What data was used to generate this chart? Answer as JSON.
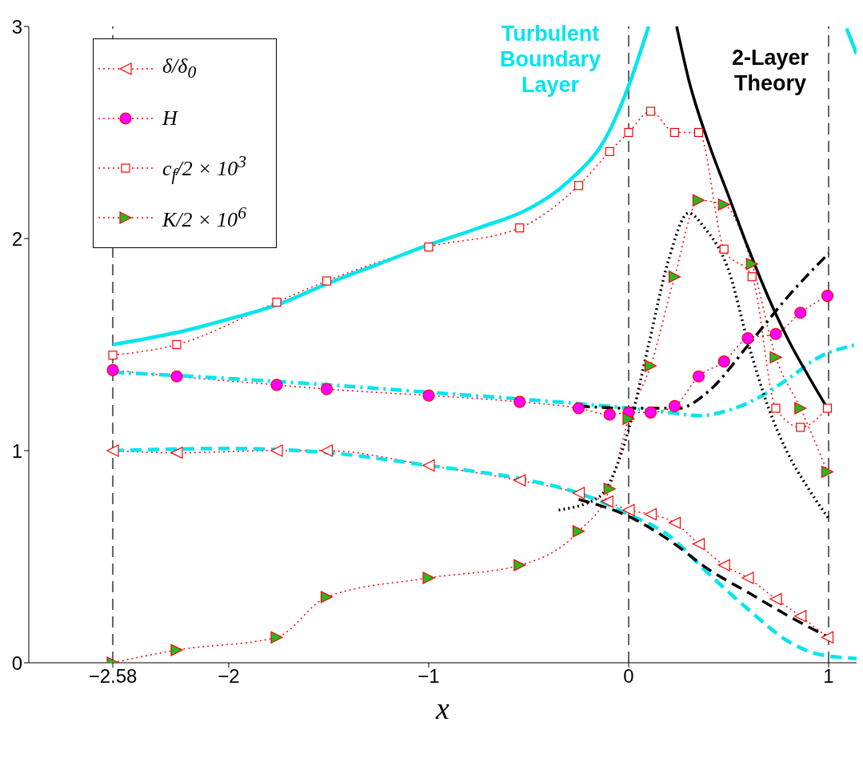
{
  "chart_data": {
    "type": "line",
    "xlabel": "x",
    "xlim": [
      -3,
      1.14
    ],
    "ylim": [
      0,
      3
    ],
    "xticks": [
      {
        "value": -2.58,
        "label": "−2.58"
      },
      {
        "value": -2,
        "label": "−2"
      },
      {
        "value": -1,
        "label": "−1"
      },
      0,
      1
    ],
    "yticks": [
      0,
      1,
      2,
      3
    ],
    "legend": "top left",
    "ref_lines": [
      {
        "axis": "x",
        "value": -2.58,
        "color": "#000000",
        "line_style": "dashed"
      },
      {
        "axis": "x",
        "value": 0,
        "color": "#000000",
        "line_style": "dashed"
      },
      {
        "axis": "x",
        "value": 1,
        "color": "#000000",
        "line_style": "dashed"
      }
    ],
    "annotations": [
      "Turbulent Boundary Layer",
      "2-Layer Theory"
    ],
    "series": [
      {
        "name": "δ/δ$_{0}$",
        "color": "#ff0000",
        "marker": "triangle",
        "line_style": "dotted",
        "x": [
          -2.58,
          -2.26,
          -1.76,
          -1.51,
          -1.0,
          -0.545,
          -0.25,
          -0.107,
          0,
          0.11,
          0.23,
          0.35,
          0.477,
          0.596,
          0.736,
          0.859,
          0.994
        ],
        "values": [
          1.0,
          0.99,
          1.0,
          1.0,
          0.93,
          0.86,
          0.8,
          0.76,
          0.72,
          0.7,
          0.66,
          0.56,
          0.46,
          0.4,
          0.3,
          0.22,
          0.12
        ]
      },
      {
        "name": "H",
        "color": "#ff0000",
        "colors": [
          "#ff00ff",
          "#ff00ff",
          "#ff00ff",
          "#ff00ff",
          "#ff00ff",
          "#ff00ff",
          "#ff00ff",
          "#ff00ff",
          "#ff00ff",
          "#ff00ff",
          "#ff00ff",
          "#ff00ff",
          "#ff00ff",
          "#ff00ff",
          "#ff00ff",
          "#ff00ff",
          "#ff00ff"
        ],
        "marker": "circle",
        "line_style": "dotted",
        "x": [
          -2.58,
          -2.26,
          -1.76,
          -1.51,
          -1.0,
          -0.545,
          -0.25,
          -0.095,
          0,
          0.11,
          0.23,
          0.35,
          0.477,
          0.596,
          0.736,
          0.859,
          0.994
        ],
        "values": [
          1.38,
          1.35,
          1.31,
          1.29,
          1.26,
          1.23,
          1.2,
          1.17,
          1.18,
          1.18,
          1.21,
          1.35,
          1.42,
          1.53,
          1.55,
          1.65,
          1.73
        ]
      },
      {
        "name": "c$_{f}$/2 × 10$^{3}$",
        "color": "#ff0000",
        "marker": "square",
        "line_style": "dotted",
        "x": [
          -2.58,
          -2.26,
          -1.76,
          -1.51,
          -1.0,
          -0.545,
          -0.25,
          -0.095,
          0,
          0.11,
          0.23,
          0.35,
          0.477,
          0.617,
          0.736,
          0.859,
          0.994
        ],
        "values": [
          1.45,
          1.5,
          1.7,
          1.8,
          1.96,
          2.05,
          2.25,
          2.41,
          2.5,
          2.6,
          2.5,
          2.5,
          1.95,
          1.82,
          1.2,
          1.11,
          1.2
        ]
      },
      {
        "name": "K/2 × 10$^{6}$",
        "color": "#ff0000",
        "colors": [
          "#22bb22",
          "#22bb22",
          "#22bb22",
          "#22bb22",
          "#22bb22",
          "#22bb22",
          "#22bb22",
          "#22bb22",
          "#22bb22",
          "#22bb22",
          "#22bb22",
          "#22bb22",
          "#22bb22",
          "#22bb22",
          "#22bb22",
          "#22bb22",
          "#22bb22"
        ],
        "marker": "triangle",
        "line_style": "dotted",
        "x": [
          -2.58,
          -2.26,
          -1.76,
          -1.51,
          -1.0,
          -0.545,
          -0.25,
          -0.095,
          0,
          0.11,
          0.23,
          0.35,
          0.477,
          0.617,
          0.736,
          0.859,
          0.994
        ],
        "values": [
          0,
          0.06,
          0.12,
          0.31,
          0.4,
          0.46,
          0.62,
          0.82,
          1.15,
          1.4,
          1.82,
          2.18,
          2.16,
          1.88,
          1.44,
          1.2,
          0.9
        ]
      },
      {
        "color": "#00e5ee",
        "marker": "none",
        "line_style": "solid",
        "x": [
          -2.58,
          -2.2,
          -2,
          -1.75,
          -1.5,
          -1.25,
          -1,
          -0.75,
          -0.5,
          -0.3,
          -0.1,
          0,
          0.1,
          0.6,
          1.09,
          1.14
        ],
        "values": [
          1.5,
          1.57,
          1.62,
          1.69,
          1.79,
          1.88,
          1.97,
          2.05,
          2.14,
          2.27,
          2.5,
          2.72,
          3.0,
          null,
          2.99,
          2.87
        ]
      },
      {
        "color": "#00e5ee",
        "marker": "none",
        "line_style": "dashdot",
        "x": [
          -2.58,
          -2,
          -1.5,
          -1,
          -0.5,
          0,
          0.2,
          0.35,
          0.5,
          0.65,
          0.8,
          0.95,
          1.14
        ],
        "values": [
          1.37,
          1.34,
          1.31,
          1.275,
          1.24,
          1.2,
          1.18,
          1.165,
          1.19,
          1.25,
          1.34,
          1.44,
          1.5
        ]
      },
      {
        "color": "#00e5ee",
        "marker": "none",
        "line_style": "dashed",
        "x": [
          -2.58,
          -2,
          -1.5,
          -1,
          -0.5,
          -0.25,
          0,
          0.2,
          0.4,
          0.6,
          0.8,
          0.95,
          1.14
        ],
        "values": [
          1.0,
          1.01,
          0.99,
          0.93,
          0.86,
          0.8,
          0.7,
          0.6,
          0.42,
          0.25,
          0.1,
          0.04,
          0.02
        ]
      },
      {
        "color": "#000000",
        "marker": "none",
        "line_style": "solid",
        "x": [
          0.24,
          0.3,
          0.4,
          0.5,
          0.6,
          0.7,
          0.8,
          0.9,
          1.0
        ],
        "values": [
          3.0,
          2.75,
          2.45,
          2.2,
          1.95,
          1.72,
          1.52,
          1.35,
          1.19
        ]
      },
      {
        "color": "#000000",
        "marker": "none",
        "line_style": "dashdot",
        "x": [
          -0.25,
          0,
          0.25,
          0.4,
          0.6,
          0.8,
          1.0
        ],
        "values": [
          1.21,
          1.2,
          1.2,
          1.28,
          1.5,
          1.73,
          1.93
        ]
      },
      {
        "color": "#000000",
        "marker": "none",
        "line_style": "dashed",
        "x": [
          -0.25,
          0,
          0.2,
          0.4,
          0.6,
          0.8,
          1.0
        ],
        "values": [
          0.77,
          0.69,
          0.58,
          0.44,
          0.33,
          0.22,
          0.12
        ]
      },
      {
        "color": "#000000",
        "marker": "none",
        "line_style": "dotted",
        "x": [
          -0.35,
          -0.15,
          0,
          0.1,
          0.2,
          0.3,
          0.38,
          0.5,
          0.6,
          0.7,
          0.8,
          0.9,
          1.0
        ],
        "values": [
          0.72,
          0.78,
          1.1,
          1.5,
          1.9,
          2.12,
          2.05,
          1.85,
          1.5,
          1.2,
          0.98,
          0.82,
          0.68
        ]
      }
    ]
  }
}
